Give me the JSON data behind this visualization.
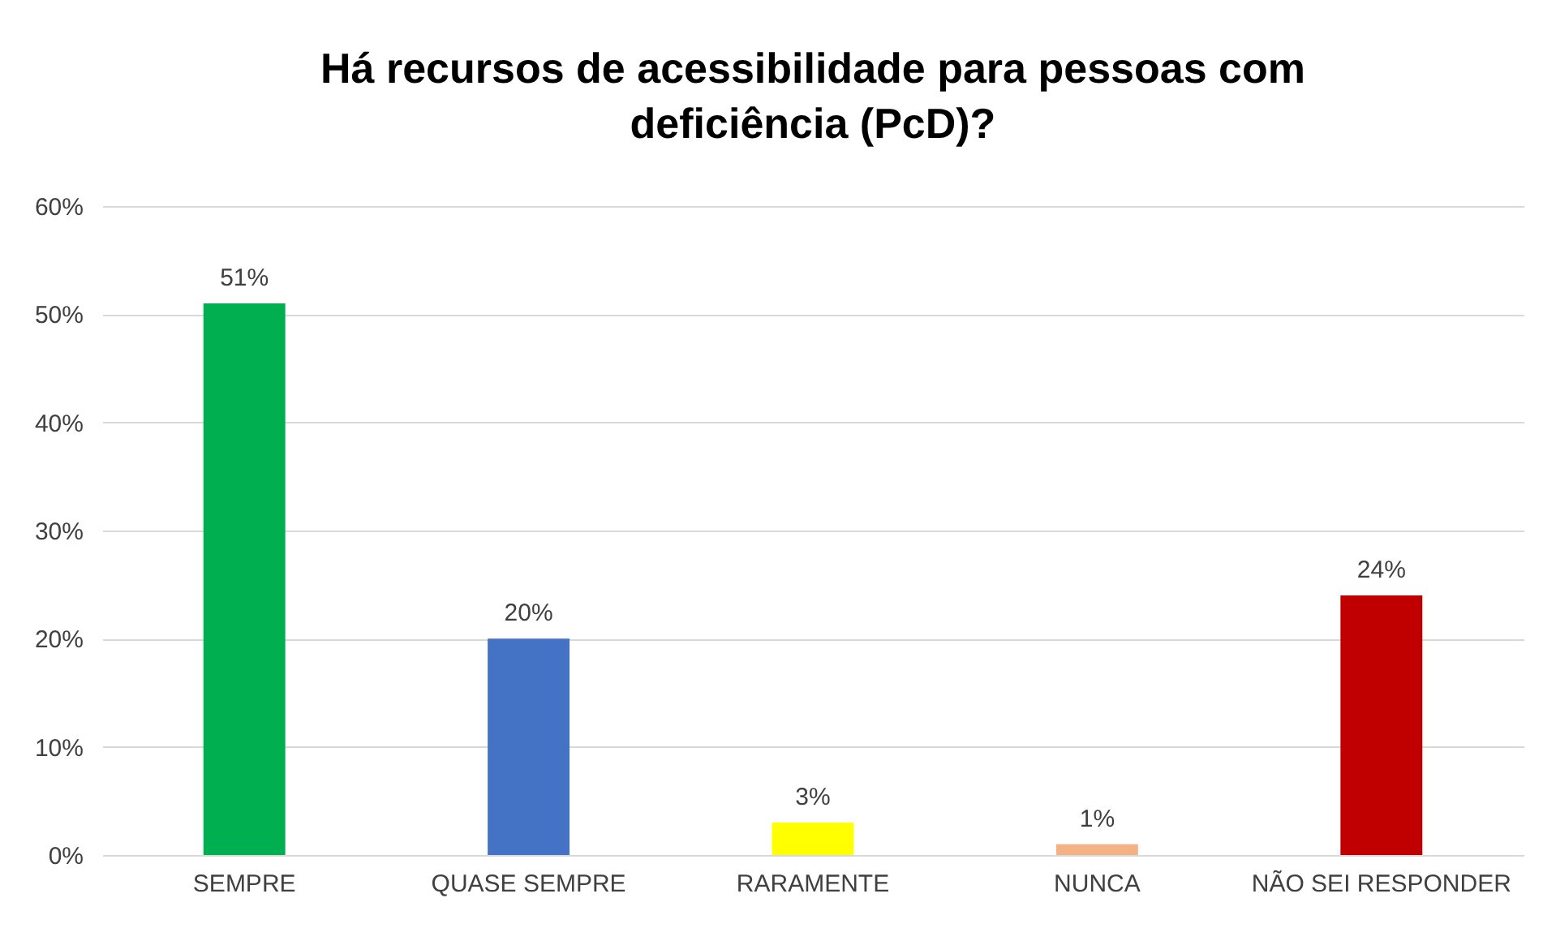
{
  "chart_data": {
    "type": "bar",
    "title": "Há recursos de acessibilidade para pessoas com deficiência (PcD)?",
    "categories": [
      "SEMPRE",
      "QUASE SEMPRE",
      "RARAMENTE",
      "NUNCA",
      "NÃO SEI RESPONDER"
    ],
    "values": [
      51,
      20,
      3,
      1,
      24
    ],
    "colors": [
      "#00b050",
      "#4472c4",
      "#ffff00",
      "#f4b183",
      "#c00000"
    ],
    "value_labels": [
      "51%",
      "20%",
      "3%",
      "1%",
      "24%"
    ],
    "ylim": [
      0,
      60
    ],
    "yticks": [
      {
        "value": 0,
        "label": "0%"
      },
      {
        "value": 10,
        "label": "10%"
      },
      {
        "value": 20,
        "label": "20%"
      },
      {
        "value": 30,
        "label": "30%"
      },
      {
        "value": 40,
        "label": "40%"
      },
      {
        "value": 50,
        "label": "50%"
      },
      {
        "value": 60,
        "label": "60%"
      }
    ],
    "grid": "y",
    "legend": false
  }
}
